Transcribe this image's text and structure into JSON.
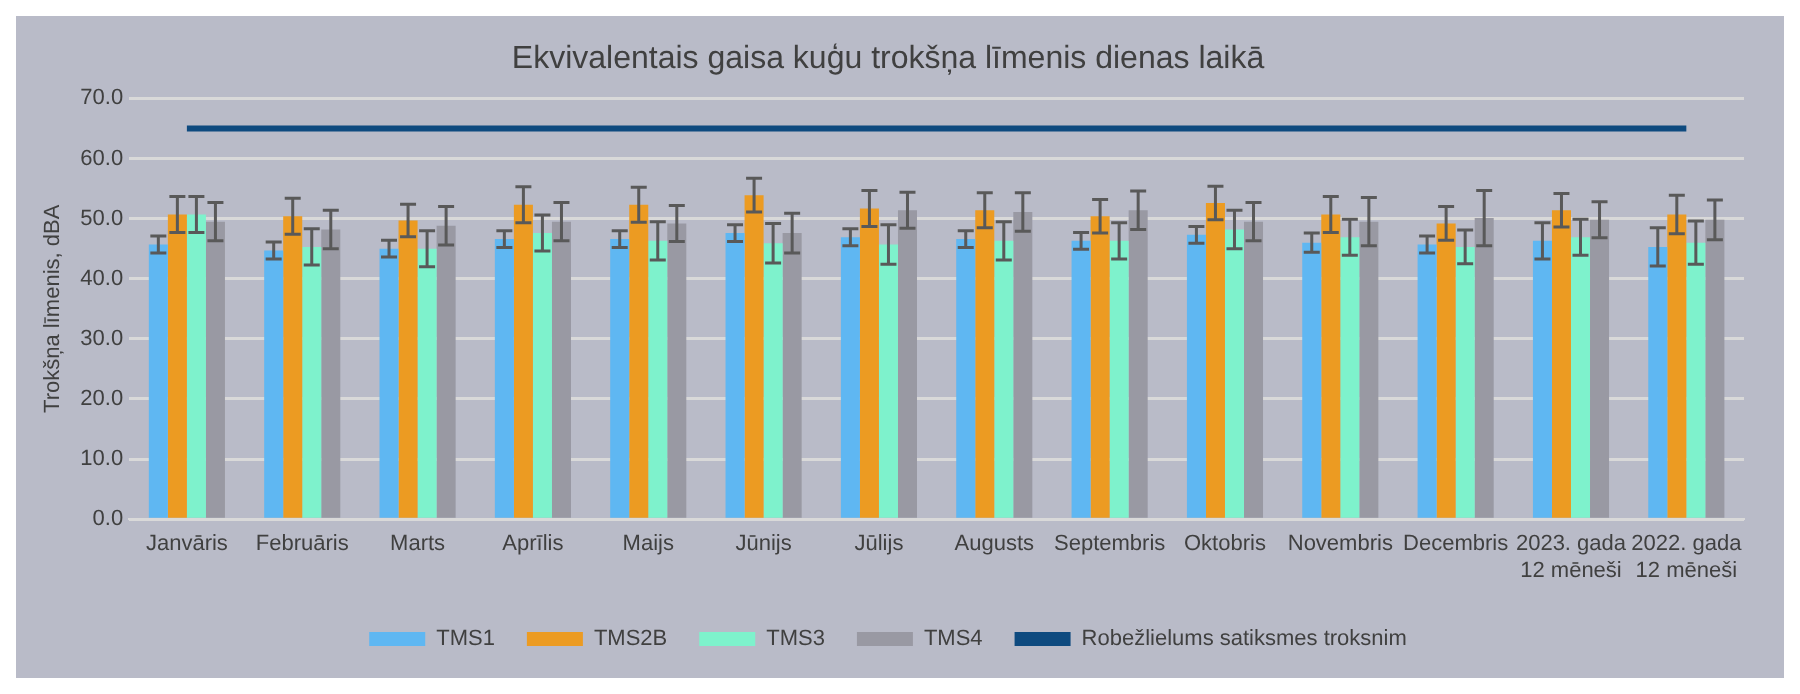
{
  "chart_data": {
    "type": "bar",
    "title": "Ekvivalentais gaisa kuģu trokšņa līmenis dienas laikā",
    "ylabel": "Trokšņa līmenis, dBA",
    "categories": [
      "Janvāris",
      "Februāris",
      "Marts",
      "Aprīlis",
      "Maijs",
      "Jūnijs",
      "Jūlijs",
      "Augusts",
      "Septembris",
      "Oktobris",
      "Novembris",
      "Decembris",
      "2023. gada 12 mēneši",
      "2022. gada 12 mēneši"
    ],
    "series": [
      {
        "name": "TMS1",
        "color": "#5fb7f2",
        "values": [
          45.7,
          44.7,
          45.0,
          46.6,
          46.6,
          47.6,
          46.9,
          46.6,
          46.3,
          47.3,
          46.0,
          45.7,
          46.3,
          45.3
        ],
        "errors": [
          1.4,
          1.4,
          1.4,
          1.4,
          1.4,
          1.4,
          1.4,
          1.4,
          1.4,
          1.4,
          1.6,
          1.4,
          3.0,
          3.2
        ]
      },
      {
        "name": "TMS2B",
        "color": "#ec9b22",
        "values": [
          50.7,
          50.4,
          49.7,
          52.3,
          52.3,
          53.9,
          51.7,
          51.4,
          50.4,
          52.6,
          50.7,
          49.2,
          51.4,
          50.7
        ],
        "errors": [
          3.0,
          3.0,
          2.7,
          3.0,
          2.9,
          2.8,
          3.0,
          2.9,
          2.8,
          2.8,
          3.0,
          2.8,
          2.8,
          3.2
        ]
      },
      {
        "name": "TMS3",
        "color": "#7ef2cc",
        "values": [
          50.7,
          45.3,
          45.0,
          47.6,
          46.3,
          45.9,
          45.7,
          46.3,
          46.3,
          48.2,
          46.9,
          45.3,
          46.9,
          46.0
        ],
        "errors": [
          3.0,
          3.0,
          3.0,
          3.0,
          3.2,
          3.3,
          3.3,
          3.2,
          3.0,
          3.2,
          3.0,
          2.8,
          3.0,
          3.6
        ]
      },
      {
        "name": "TMS4",
        "color": "#9999a3",
        "values": [
          49.5,
          48.2,
          48.8,
          49.5,
          49.2,
          47.6,
          51.4,
          51.1,
          51.4,
          49.5,
          49.5,
          50.1,
          49.8,
          49.8
        ],
        "errors": [
          3.2,
          3.2,
          3.2,
          3.2,
          3.0,
          3.3,
          3.0,
          3.2,
          3.2,
          3.2,
          4.0,
          4.6,
          3.0,
          3.3
        ]
      },
      {
        "name": "Robežlielums satiksmes troksnim",
        "type": "line",
        "color": "#0e4a7f",
        "values": [
          65,
          65,
          65,
          65,
          65,
          65,
          65,
          65,
          65,
          65,
          65,
          65,
          65,
          65
        ]
      }
    ],
    "ylim": [
      0,
      70
    ],
    "yticks": [
      {
        "value": 0,
        "label": "0.0"
      },
      {
        "value": 10,
        "label": "10.0"
      },
      {
        "value": 20,
        "label": "20.0"
      },
      {
        "value": 30,
        "label": "30.0"
      },
      {
        "value": 40,
        "label": "40.0"
      },
      {
        "value": 50,
        "label": "50.0"
      },
      {
        "value": 60,
        "label": "60.0"
      },
      {
        "value": 70,
        "label": "70.0"
      }
    ],
    "grid": "y",
    "legend": "bottom",
    "marker": "none"
  }
}
